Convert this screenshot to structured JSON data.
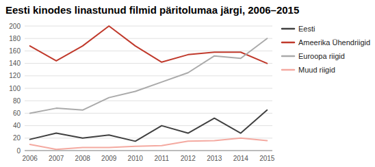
{
  "chart_data": {
    "type": "line",
    "title": "Eesti kinodes linastunud filmid päritolumaa järgi, 2006–2015",
    "x": [
      2006,
      2007,
      2008,
      2009,
      2010,
      2011,
      2012,
      2013,
      2014,
      2015
    ],
    "series": [
      {
        "name": "Eesti",
        "color": "#404040",
        "values": [
          18,
          28,
          20,
          25,
          15,
          40,
          28,
          52,
          28,
          65
        ]
      },
      {
        "name": "Ameerika Ühendriigid",
        "color": "#c0392b",
        "values": [
          168,
          144,
          168,
          200,
          168,
          142,
          154,
          158,
          158,
          140
        ]
      },
      {
        "name": "Euroopa riigid",
        "color": "#aaaaaa",
        "values": [
          60,
          68,
          65,
          85,
          95,
          110,
          125,
          152,
          148,
          180
        ]
      },
      {
        "name": "Muud riigid",
        "color": "#f4a9a0",
        "values": [
          10,
          2,
          5,
          5,
          7,
          8,
          15,
          16,
          20,
          16
        ]
      }
    ],
    "xlim": [
      2005.8,
      2015.2
    ],
    "xticks": [
      2006,
      2007,
      2008,
      2009,
      2010,
      2011,
      2012,
      2013,
      2014,
      2015
    ],
    "ylim": [
      0,
      200
    ],
    "yticks": [
      0,
      20,
      40,
      60,
      80,
      100,
      120,
      140,
      160,
      180,
      200
    ],
    "grid": true,
    "legend": "right"
  }
}
